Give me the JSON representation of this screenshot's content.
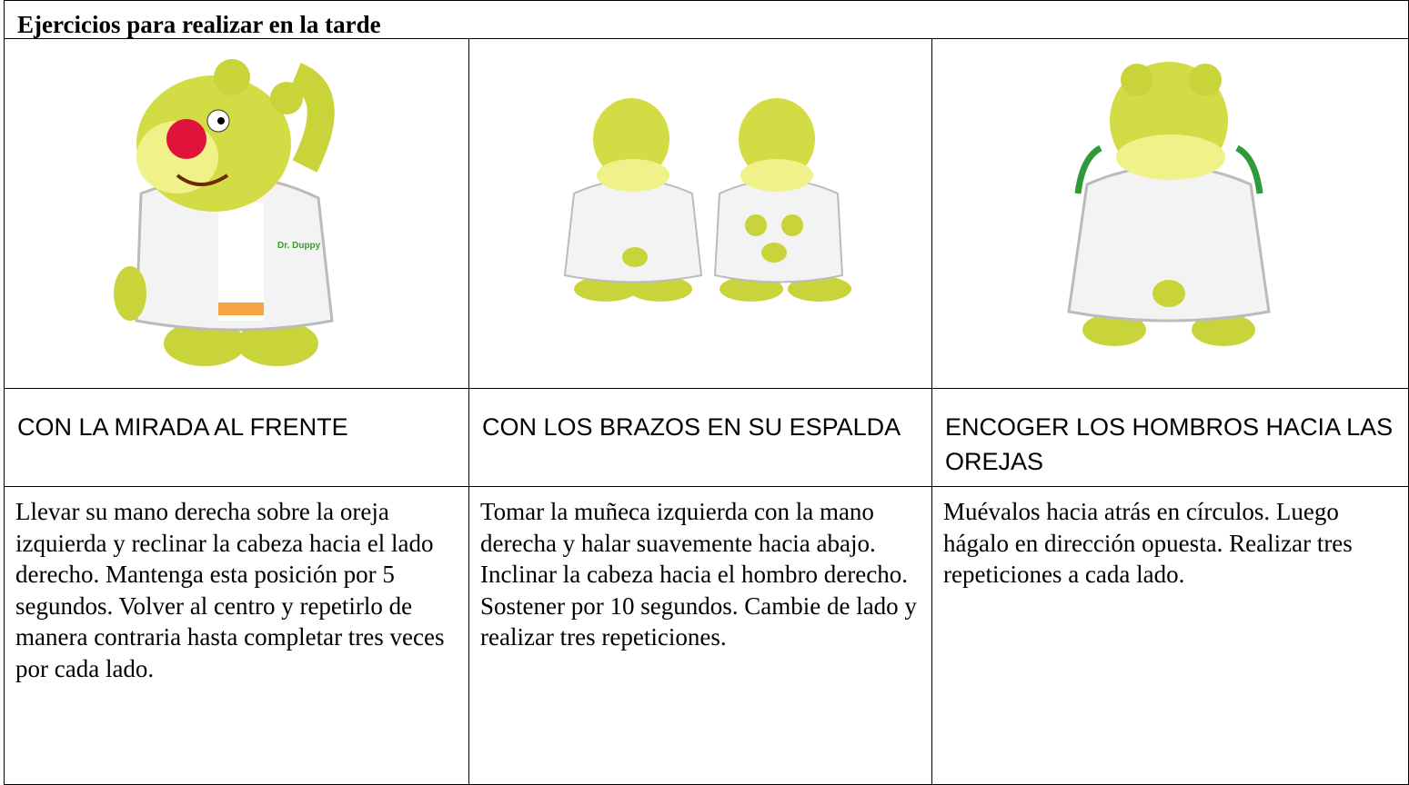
{
  "title": "Ejercicios para realizar en la tarde",
  "badge": "Dr. Duppy",
  "table": {
    "headers": [
      "CON LA MIRADA AL FRENTE",
      "CON LOS BRAZOS EN SU ESPALDA",
      "ENCOGER LOS HOMBROS HACIA LAS OREJAS"
    ],
    "descriptions": [
      "Llevar su mano derecha sobre la oreja izquierda y reclinar la cabeza hacia el lado derecho. Mantenga esta posición por 5 segundos. Volver al centro y repetirlo de manera contraria hasta completar tres veces por cada lado.",
      "Tomar la muñeca izquierda con la mano derecha y halar suavemente hacia abajo. Inclinar la cabeza hacia el hombro derecho. Sostener por 10 segundos. Cambie de lado y realizar tres repeticiones.",
      "Muévalos hacia atrás en círculos. Luego hágalo en dirección opuesta. Realizar tres repeticiones a cada lado."
    ]
  }
}
